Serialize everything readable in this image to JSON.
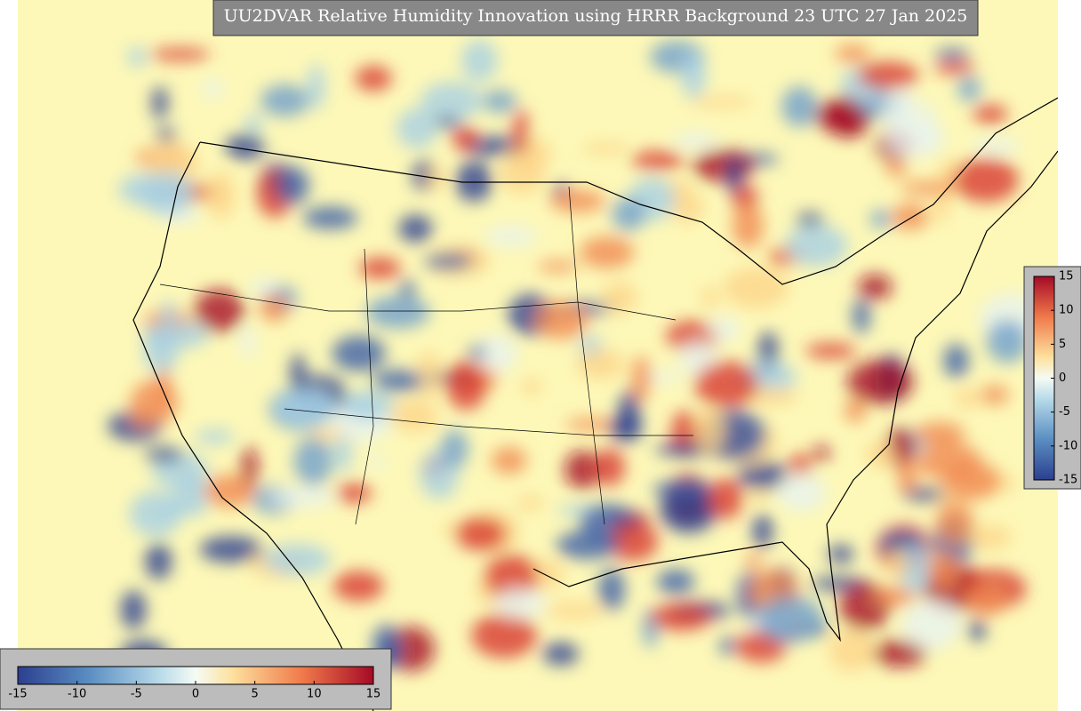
{
  "title": "UU2DVAR Relative Humidity Innovation using HRRR Background 23 UTC 27 Jan 2025",
  "colorbar": {
    "range": [
      -15,
      15
    ],
    "ticks": [
      -15,
      -10,
      -5,
      0,
      5,
      10,
      15
    ]
  }
}
